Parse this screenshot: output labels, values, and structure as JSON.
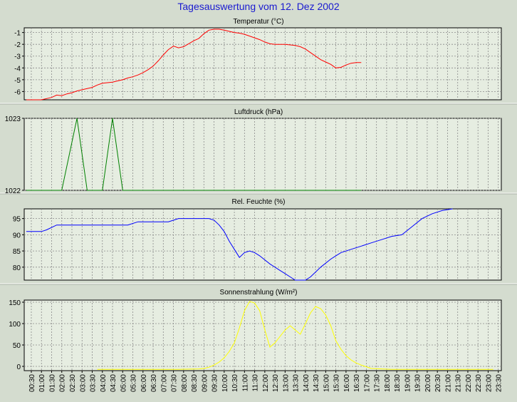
{
  "page_title": "Tagesauswertung vom 12. Dez 2002",
  "x_ticks": [
    "00:30",
    "01:00",
    "01:30",
    "02:00",
    "02:30",
    "03:00",
    "03:30",
    "04:00",
    "04:30",
    "05:00",
    "05:30",
    "06:00",
    "06:30",
    "07:00",
    "07:30",
    "08:00",
    "08:30",
    "09:00",
    "09:30",
    "10:00",
    "10:30",
    "11:00",
    "11:30",
    "12:00",
    "12:30",
    "13:00",
    "13:30",
    "14:00",
    "14:30",
    "15:00",
    "15:30",
    "16:00",
    "16:30",
    "17:00",
    "17:30",
    "18:00",
    "18:30",
    "19:00",
    "19:30",
    "20:00",
    "20:30",
    "21:00",
    "21:30",
    "22:00",
    "22:30",
    "23:00",
    "23:30"
  ],
  "colors": {
    "background": "#d4dccf",
    "plot": "#e6ede1",
    "grid": "#8a8a8a",
    "temperature": "#ff0000",
    "pressure": "#008000",
    "humidity": "#0000ff",
    "solar": "#ffff00",
    "title": "#1a1ad0"
  },
  "chart_data": [
    {
      "type": "line",
      "title": "Temperatur (°C)",
      "ylim": [
        -6.7,
        -0.6
      ],
      "yticks": [
        "-1",
        "-2",
        "-3",
        "-4",
        "-5",
        "-6"
      ],
      "yticks_values": [
        -1,
        -2,
        -3,
        -4,
        -5,
        -6
      ],
      "grid": true,
      "series": [
        {
          "color": "#ff0000",
          "points": [
            [
              0,
              -6.7
            ],
            [
              1.5,
              -6.7
            ],
            [
              2.5,
              -6.5
            ],
            [
              3,
              -6.3
            ],
            [
              3.5,
              -6.35
            ],
            [
              4,
              -6.2
            ],
            [
              4.5,
              -6.1
            ],
            [
              5,
              -5.95
            ],
            [
              5.5,
              -5.85
            ],
            [
              6,
              -5.75
            ],
            [
              6.5,
              -5.65
            ],
            [
              7,
              -5.45
            ],
            [
              7.5,
              -5.3
            ],
            [
              8,
              -5.25
            ],
            [
              8.5,
              -5.2
            ],
            [
              9,
              -5.1
            ],
            [
              9.5,
              -5.0
            ],
            [
              10,
              -4.85
            ],
            [
              10.5,
              -4.75
            ],
            [
              11,
              -4.6
            ],
            [
              11.5,
              -4.4
            ],
            [
              12,
              -4.15
            ],
            [
              12.5,
              -3.85
            ],
            [
              13,
              -3.4
            ],
            [
              13.5,
              -2.9
            ],
            [
              14,
              -2.45
            ],
            [
              14.5,
              -2.15
            ],
            [
              15,
              -2.3
            ],
            [
              15.5,
              -2.2
            ],
            [
              16,
              -1.95
            ],
            [
              16.5,
              -1.7
            ],
            [
              17,
              -1.5
            ],
            [
              17.5,
              -1.1
            ],
            [
              18,
              -0.8
            ],
            [
              18.5,
              -0.72
            ],
            [
              19,
              -0.72
            ],
            [
              19.5,
              -0.8
            ],
            [
              20,
              -0.9
            ],
            [
              20.5,
              -1.0
            ],
            [
              21,
              -1.05
            ],
            [
              21.5,
              -1.15
            ],
            [
              22,
              -1.3
            ],
            [
              22.5,
              -1.45
            ],
            [
              23,
              -1.6
            ],
            [
              23.5,
              -1.8
            ],
            [
              24,
              -1.95
            ],
            [
              24.5,
              -2.0
            ],
            [
              25,
              -2.0
            ],
            [
              25.5,
              -2.0
            ],
            [
              26,
              -2.05
            ],
            [
              26.5,
              -2.1
            ],
            [
              27,
              -2.2
            ],
            [
              27.5,
              -2.4
            ],
            [
              28,
              -2.7
            ],
            [
              28.5,
              -3.0
            ],
            [
              29,
              -3.3
            ],
            [
              29.5,
              -3.5
            ],
            [
              30,
              -3.7
            ],
            [
              30.5,
              -4.0
            ],
            [
              31,
              -3.95
            ],
            [
              31.5,
              -3.75
            ],
            [
              32,
              -3.6
            ],
            [
              32.5,
              -3.55
            ],
            [
              33,
              -3.55
            ]
          ]
        }
      ]
    },
    {
      "type": "line",
      "title": "Luftdruck (hPa)",
      "ylim": [
        1022,
        1023
      ],
      "yticks": [
        "1023",
        "1022"
      ],
      "yticks_values": [
        1023,
        1022
      ],
      "grid": true,
      "series": [
        {
          "color": "#008000",
          "points": [
            [
              0,
              1022
            ],
            [
              3.5,
              1022
            ],
            [
              5,
              1023
            ],
            [
              6,
              1022
            ],
            [
              7.5,
              1022
            ],
            [
              8.5,
              1023
            ],
            [
              9.5,
              1022
            ],
            [
              33,
              1022
            ]
          ]
        }
      ]
    },
    {
      "type": "line",
      "title": "Rel. Feuchte (%)",
      "ylim": [
        76,
        98
      ],
      "yticks": [
        "95",
        "90",
        "85",
        "80"
      ],
      "yticks_values": [
        95,
        90,
        85,
        80
      ],
      "grid": true,
      "series": [
        {
          "color": "#0000ff",
          "points": [
            [
              0,
              91
            ],
            [
              1.5,
              91
            ],
            [
              2,
              91.5
            ],
            [
              3,
              93
            ],
            [
              8,
              93
            ],
            [
              9,
              93
            ],
            [
              10,
              93
            ],
            [
              11,
              94
            ],
            [
              14,
              94
            ],
            [
              15,
              95
            ],
            [
              16,
              95
            ],
            [
              17,
              95
            ],
            [
              18,
              95
            ],
            [
              18.5,
              94.5
            ],
            [
              19,
              93
            ],
            [
              19.5,
              91
            ],
            [
              20,
              88
            ],
            [
              20.5,
              85.5
            ],
            [
              21,
              83
            ],
            [
              21.5,
              84.5
            ],
            [
              22,
              85
            ],
            [
              22.5,
              84.5
            ],
            [
              23,
              83.5
            ],
            [
              24,
              81
            ],
            [
              25,
              79
            ],
            [
              25.5,
              78
            ],
            [
              26,
              77
            ],
            [
              26.5,
              76
            ],
            [
              27,
              76
            ],
            [
              27.5,
              76
            ],
            [
              28,
              77
            ],
            [
              29,
              80
            ],
            [
              30,
              82.5
            ],
            [
              30.5,
              83.5
            ],
            [
              31,
              84.5
            ],
            [
              32,
              85.5
            ],
            [
              33,
              86.5
            ],
            [
              34,
              87.5
            ],
            [
              35,
              88.5
            ],
            [
              36,
              89.5
            ],
            [
              37,
              90
            ],
            [
              38,
              92.5
            ],
            [
              39,
              95
            ],
            [
              40,
              96.5
            ],
            [
              41,
              97.5
            ],
            [
              42,
              98
            ]
          ]
        }
      ]
    },
    {
      "type": "line",
      "title": "Sonnenstrahlung (W/m²)",
      "ylim": [
        -10,
        155
      ],
      "yticks": [
        "150",
        "100",
        "50",
        "0"
      ],
      "yticks_values": [
        150,
        100,
        50,
        0
      ],
      "grid": true,
      "series": [
        {
          "color": "#ffff00",
          "points": [
            [
              7,
              -7
            ],
            [
              9,
              -7
            ],
            [
              11,
              -7
            ],
            [
              13,
              -7
            ],
            [
              15,
              -7
            ],
            [
              17,
              -6
            ],
            [
              17.5,
              -5
            ],
            [
              18,
              -2
            ],
            [
              18.5,
              3
            ],
            [
              19,
              10
            ],
            [
              19.5,
              20
            ],
            [
              20,
              35
            ],
            [
              20.5,
              55
            ],
            [
              21,
              90
            ],
            [
              21.5,
              130
            ],
            [
              22,
              152
            ],
            [
              22.5,
              148
            ],
            [
              23,
              130
            ],
            [
              23.5,
              85
            ],
            [
              24,
              45
            ],
            [
              24.5,
              55
            ],
            [
              25,
              70
            ],
            [
              25.5,
              85
            ],
            [
              26,
              95
            ],
            [
              26.5,
              85
            ],
            [
              27,
              75
            ],
            [
              27.5,
              100
            ],
            [
              28,
              125
            ],
            [
              28.5,
              140
            ],
            [
              29,
              135
            ],
            [
              29.5,
              120
            ],
            [
              30,
              95
            ],
            [
              30.5,
              60
            ],
            [
              31,
              40
            ],
            [
              31.5,
              25
            ],
            [
              32,
              15
            ],
            [
              32.5,
              8
            ],
            [
              33,
              3
            ],
            [
              33.5,
              -1
            ],
            [
              34,
              -5
            ],
            [
              35,
              -6
            ],
            [
              36,
              -7
            ],
            [
              38,
              -7
            ],
            [
              40,
              -7
            ],
            [
              42,
              -7
            ],
            [
              44,
              -7
            ],
            [
              46,
              -7
            ]
          ]
        }
      ]
    }
  ]
}
